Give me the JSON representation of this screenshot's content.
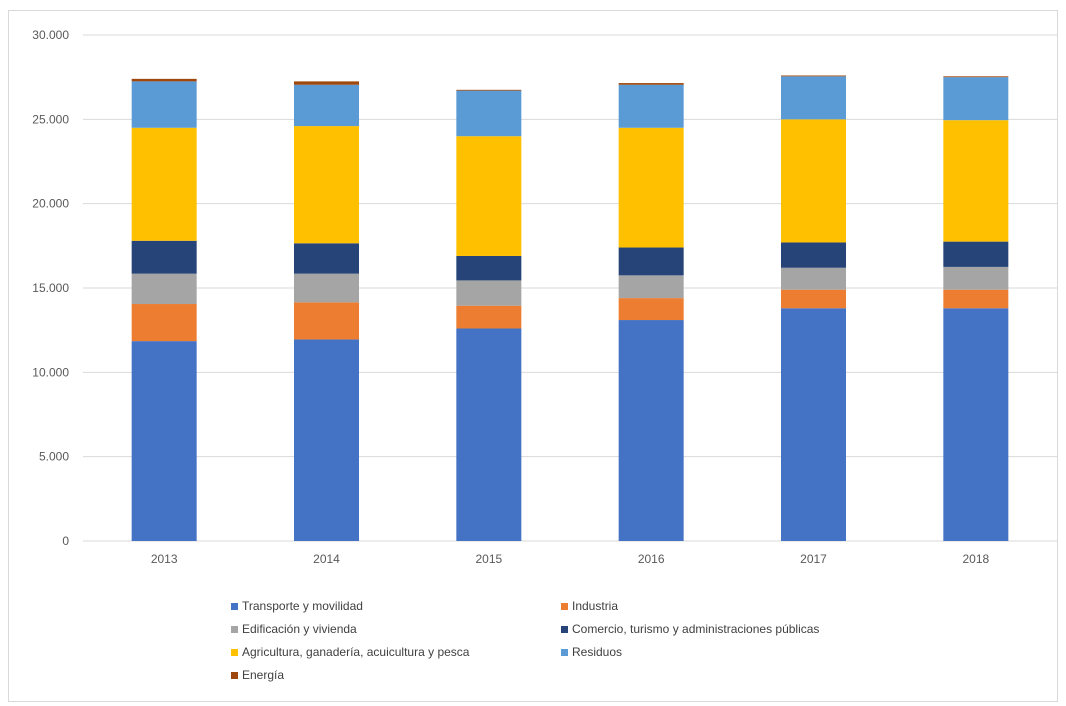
{
  "chart_data": {
    "type": "bar",
    "stacked": true,
    "categories": [
      "2013",
      "2014",
      "2015",
      "2016",
      "2017",
      "2018"
    ],
    "ylim": [
      0,
      30000
    ],
    "yticks": [
      0,
      5000,
      10000,
      15000,
      20000,
      25000,
      30000
    ],
    "ytick_labels": [
      "0",
      "5.000",
      "10.000",
      "15.000",
      "20.000",
      "25.000",
      "30.000"
    ],
    "grid": true,
    "legend_position": "bottom",
    "series": [
      {
        "name": "Transporte y movilidad",
        "color": "#4472C4",
        "values": [
          11850,
          11950,
          12600,
          13100,
          13800,
          13800
        ]
      },
      {
        "name": "Industria",
        "color": "#ED7D31",
        "values": [
          2200,
          2200,
          1350,
          1300,
          1100,
          1100
        ]
      },
      {
        "name": "Edificación y vivienda",
        "color": "#A5A5A5",
        "values": [
          1800,
          1700,
          1500,
          1350,
          1300,
          1350
        ]
      },
      {
        "name": "Comercio, turismo y administraciones públicas",
        "color": "#264478",
        "values": [
          1950,
          1800,
          1450,
          1650,
          1500,
          1500
        ]
      },
      {
        "name": "Agricultura, ganadería, acuicultura y pesca",
        "color": "#FFC000",
        "values": [
          6700,
          6950,
          7100,
          7100,
          7300,
          7200
        ]
      },
      {
        "name": "Residuos",
        "color": "#5B9BD5",
        "values": [
          2750,
          2450,
          2700,
          2550,
          2550,
          2550
        ]
      },
      {
        "name": "Energía",
        "color": "#9E480E",
        "values": [
          150,
          200,
          50,
          100,
          50,
          50
        ]
      }
    ]
  }
}
